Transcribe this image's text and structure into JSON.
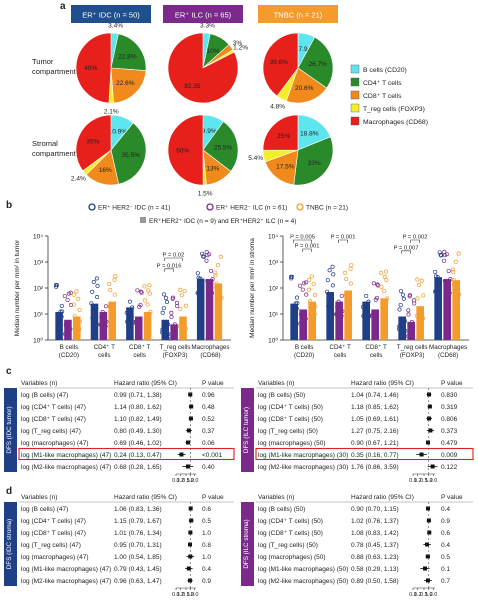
{
  "panel_labels": {
    "a": "a",
    "b": "b",
    "c": "c",
    "d": "d"
  },
  "colors": {
    "b_cells": "#5ee6ee",
    "cd4": "#2a8a2a",
    "cd8": "#f08a1c",
    "treg": "#f2ee2a",
    "macrophages": "#e8201c",
    "er_idc": "#1f3f87",
    "er_ilc": "#7b2a8c",
    "tnbc": "#f39c2b",
    "highlight": "#e0201c"
  },
  "panel_a": {
    "headers": [
      {
        "text": "ER⁺ IDC (n = 50)",
        "color": "#1f4f8c"
      },
      {
        "text": "ER⁺ ILC (n = 65)",
        "color": "#7b2a8c"
      },
      {
        "text": "TNBC (n = 21)",
        "color": "#f39c2b"
      }
    ],
    "row_labels": [
      "Tumor\ncompartment",
      "Stromal\ncompartment"
    ],
    "legend": [
      {
        "label": "B cells (CD20)",
        "color": "#5ee6ee"
      },
      {
        "label": "CD4⁺ T cells",
        "color": "#2a8a2a"
      },
      {
        "label": "CD8⁺ T cells",
        "color": "#f08a1c"
      },
      {
        "label": "T_reg cells (FOXP3)",
        "color": "#f2ee2a"
      },
      {
        "label": "Macrophages (CD68)",
        "color": "#e8201c"
      }
    ]
  },
  "chart_data": [
    {
      "type": "pie",
      "panel": "a",
      "row": "Tumor compartment",
      "column": "ER⁺ IDC",
      "labels": [
        "B cells",
        "CD4⁺ T cells",
        "CD8⁺ T cells",
        "T_reg cells",
        "Macrophages"
      ],
      "values": [
        3.4,
        22.8,
        22.6,
        2.1,
        49
      ],
      "value_labels": [
        "3.4%",
        "22.8%",
        "22.6%",
        "2.1%",
        "49%"
      ]
    },
    {
      "type": "pie",
      "panel": "a",
      "row": "Tumor compartment",
      "column": "ER⁺ ILC",
      "labels": [
        "B cells",
        "CD4⁺ T cells",
        "CD8⁺ T cells",
        "T_reg cells",
        "Macrophages"
      ],
      "values": [
        3.3,
        10,
        3,
        1.2,
        82.35
      ],
      "value_labels": [
        "3.3%",
        "10%",
        "3%",
        "1.2%",
        "82.35"
      ]
    },
    {
      "type": "pie",
      "panel": "a",
      "row": "Tumor compartment",
      "column": "TNBC",
      "labels": [
        "B cells",
        "CD4⁺ T cells",
        "CD8⁺ T cells",
        "T_reg cells",
        "Macrophages"
      ],
      "values": [
        7.9,
        26.7,
        20.6,
        4.8,
        39.6
      ],
      "value_labels": [
        "7.9",
        "26.7%",
        "20.6%",
        "4.8%",
        "39.6%"
      ]
    },
    {
      "type": "pie",
      "panel": "a",
      "row": "Stromal compartment",
      "column": "ER⁺ IDC",
      "labels": [
        "B cells",
        "CD4⁺ T cells",
        "CD8⁺ T cells",
        "T_reg cells",
        "Macrophages"
      ],
      "values": [
        10.9,
        35.5,
        16,
        2.4,
        35
      ],
      "value_labels": [
        "10.9%",
        "35.5%",
        "16%",
        "2.4%",
        "35%"
      ]
    },
    {
      "type": "pie",
      "panel": "a",
      "row": "Stromal compartment",
      "column": "ER⁺ ILC",
      "labels": [
        "B cells",
        "CD4⁺ T cells",
        "CD8⁺ T cells",
        "T_reg cells",
        "Macrophages"
      ],
      "values": [
        9.9,
        25.5,
        13,
        1.5,
        50
      ],
      "value_labels": [
        "9.9%",
        "25.5%",
        "13%",
        "1.5%",
        "50%"
      ]
    },
    {
      "type": "pie",
      "panel": "a",
      "row": "Stromal compartment",
      "column": "TNBC",
      "labels": [
        "B cells",
        "CD4⁺ T cells",
        "CD8⁺ T cells",
        "T_reg cells",
        "Macrophages"
      ],
      "values": [
        18.8,
        33,
        17.5,
        5.4,
        25
      ],
      "value_labels": [
        "18.8%",
        "33%",
        "17.5%",
        "5.4%",
        "25%"
      ]
    },
    {
      "type": "bar",
      "panel": "b",
      "title": "",
      "ylabel": "Median number per mm² in tumor",
      "y_scale": "log",
      "ylim": [
        1,
        10000
      ],
      "y_ticks": [
        "10⁰",
        "10¹",
        "10²",
        "10³",
        "10⁴"
      ],
      "categories": [
        "B cells (CD20)",
        "CD4⁺ T cells",
        "CD8⁺ T cells",
        "T_reg cells (FOXP3)",
        "Macrophages (CD68)"
      ],
      "series": [
        {
          "name": "ER⁺ HER2⁻ IDC (n = 41)",
          "values": [
            12,
            25,
            18,
            6,
            230
          ]
        },
        {
          "name": "ER⁺ HER2⁻ ILC (n = 61)",
          "values": [
            6,
            12,
            8,
            4,
            220
          ]
        },
        {
          "name": "TNBC (n = 21)",
          "values": [
            8,
            30,
            12,
            8,
            150
          ]
        }
      ],
      "annotations": [
        "P = 0.02",
        "P = 0.016"
      ]
    },
    {
      "type": "bar",
      "panel": "b",
      "title": "",
      "ylabel": "Median number per mm² in stroma",
      "y_scale": "log",
      "ylim": [
        1,
        10000
      ],
      "y_ticks": [
        "10⁰",
        "10¹",
        "10²",
        "10³",
        "10⁴"
      ],
      "categories": [
        "B cells (CD20)",
        "CD4⁺ T cells",
        "CD8⁺ T cells",
        "T_reg cells (FOXP3)",
        "Macrophages (CD68)"
      ],
      "series": [
        {
          "name": "ER⁺ HER2⁻ IDC (n = 41)",
          "values": [
            25,
            70,
            30,
            8,
            260
          ]
        },
        {
          "name": "ER⁺ HER2⁻ ILC (n = 61)",
          "values": [
            15,
            30,
            15,
            5,
            220
          ]
        },
        {
          "name": "TNBC (n = 21)",
          "values": [
            30,
            80,
            40,
            20,
            200
          ]
        }
      ],
      "annotations": [
        "P = 0.005",
        "P = 0.001",
        "P = 0.001",
        "P = 0.002",
        "P = 0.007"
      ]
    }
  ],
  "panel_b_legend": [
    {
      "label": "ER⁺ HER2⁻ IDC (n = 41)",
      "color": "#1f3f87"
    },
    {
      "label": "ER⁺ HER2⁻ ILC (n = 61)",
      "color": "#7b2a8c"
    },
    {
      "label": "TNBC (n = 21)",
      "color": "#f39c2b"
    },
    {
      "label": "ER⁺HER2⁺ IDC (n = 9) and ER⁺HER2⁺ ILC (n = 4)",
      "color": "#999999"
    }
  ],
  "forest_headers": {
    "variables": "Variables (n)",
    "hr": "Hazard ratio (95% CI)",
    "p": "P value"
  },
  "forest_ticks": [
    "0.1",
    "0.2",
    "0.5",
    "1.0",
    "2.0"
  ],
  "forests": [
    {
      "id": "c-left",
      "side_label": "DFS (IDC tumor)",
      "side_color": "#1f3f87",
      "highlight_row": 5,
      "rows": [
        {
          "var": "log (B cells) (47)",
          "hr": "0.99 (0.71, 1.38)",
          "p": "0.96",
          "est": 0.99,
          "lo": 0.71,
          "hi": 1.38
        },
        {
          "var": "log (CD4⁺ T cells) (47)",
          "hr": "1.14 (0.80, 1.62)",
          "p": "0.48",
          "est": 1.14,
          "lo": 0.8,
          "hi": 1.62
        },
        {
          "var": "log (CD8⁺ T cells) (47)",
          "hr": "1.10 (0.82, 1.49)",
          "p": "0.52",
          "est": 1.1,
          "lo": 0.82,
          "hi": 1.49
        },
        {
          "var": "log (T_reg cells) (47)",
          "hr": "0.80 (0.49, 1.30)",
          "p": "0.37",
          "est": 0.8,
          "lo": 0.49,
          "hi": 1.3
        },
        {
          "var": "log (macrophages) (47)",
          "hr": "0.69 (0.46, 1.02)",
          "p": "0.06",
          "est": 0.69,
          "lo": 0.46,
          "hi": 1.02
        },
        {
          "var": "log (M1-like macrophages) (47)",
          "hr": "0.24 (0.13, 0.47)",
          "p": "<0.001",
          "est": 0.24,
          "lo": 0.13,
          "hi": 0.47
        },
        {
          "var": "log (M2-like macrophages) (47)",
          "hr": "0.68 (0.28, 1.65)",
          "p": "0.40",
          "est": 0.68,
          "lo": 0.28,
          "hi": 1.65
        }
      ]
    },
    {
      "id": "c-right",
      "side_label": "DFS (ILC tumor)",
      "side_color": "#7b2a8c",
      "highlight_row": 5,
      "rows": [
        {
          "var": "log (B cells) (50)",
          "hr": "1.04 (0.74, 1.46)",
          "p": "0.830",
          "est": 1.04,
          "lo": 0.74,
          "hi": 1.46
        },
        {
          "var": "log (CD4⁺ T cells) (50)",
          "hr": "1.18 (0.85, 1.62)",
          "p": "0.319",
          "est": 1.18,
          "lo": 0.85,
          "hi": 1.62
        },
        {
          "var": "log (CD8⁺ T cells) (50)",
          "hr": "1.05 (0.69, 1.61)",
          "p": "0.806",
          "est": 1.05,
          "lo": 0.69,
          "hi": 1.61
        },
        {
          "var": "log (T_reg cells) (50)",
          "hr": "1.27 (0.75, 2.16)",
          "p": "0.373",
          "est": 1.27,
          "lo": 0.75,
          "hi": 2.16
        },
        {
          "var": "log (macrophages) (50)",
          "hr": "0.90 (0.67, 1.21)",
          "p": "0.479",
          "est": 0.9,
          "lo": 0.67,
          "hi": 1.21
        },
        {
          "var": "log (M1-like macrophages) (30)",
          "hr": "0.35 (0.16, 0.77)",
          "p": "0.009",
          "est": 0.35,
          "lo": 0.16,
          "hi": 0.77
        },
        {
          "var": "log (M2-like macrophages) (30)",
          "hr": "1.76 (0.86, 3.59)",
          "p": "0.122",
          "est": 1.76,
          "lo": 0.86,
          "hi": 3.59
        }
      ]
    },
    {
      "id": "d-left",
      "side_label": "DFS (IDC stroma)",
      "side_color": "#1f3f87",
      "highlight_row": -1,
      "rows": [
        {
          "var": "log (B cells) (47)",
          "hr": "1.06 (0.83, 1.36)",
          "p": "0.6",
          "est": 1.06,
          "lo": 0.83,
          "hi": 1.36
        },
        {
          "var": "log (CD4⁺ T cells) (47)",
          "hr": "1.15 (0.79, 1.67)",
          "p": "0.5",
          "est": 1.15,
          "lo": 0.79,
          "hi": 1.67
        },
        {
          "var": "log (CD8⁺ T cells) (47)",
          "hr": "1.01 (0.76, 1.34)",
          "p": "1.0",
          "est": 1.01,
          "lo": 0.76,
          "hi": 1.34
        },
        {
          "var": "log (T_reg cells) (47)",
          "hr": "0.95 (0.70, 1.31)",
          "p": "0.8",
          "est": 0.95,
          "lo": 0.7,
          "hi": 1.31
        },
        {
          "var": "log (macrophages) (47)",
          "hr": "1.00 (0.54, 1.85)",
          "p": "1.0",
          "est": 1.0,
          "lo": 0.54,
          "hi": 1.85
        },
        {
          "var": "log (M1-like macrophages) (47)",
          "hr": "0.79 (0.43, 1.45)",
          "p": "0.4",
          "est": 0.79,
          "lo": 0.43,
          "hi": 1.45
        },
        {
          "var": "log (M2-like macrophages) (47)",
          "hr": "0.96 (0.63, 1.47)",
          "p": "0.9",
          "est": 0.96,
          "lo": 0.63,
          "hi": 1.47
        }
      ]
    },
    {
      "id": "d-right",
      "side_label": "DFS (ILC stroma)",
      "side_color": "#7b2a8c",
      "highlight_row": -1,
      "rows": [
        {
          "var": "log (B cells) (50)",
          "hr": "0.90 (0.70, 1.15)",
          "p": "0.4",
          "est": 0.9,
          "lo": 0.7,
          "hi": 1.15
        },
        {
          "var": "log (CD4⁺ T cells) (50)",
          "hr": "1.02 (0.76, 1.37)",
          "p": "0.9",
          "est": 1.02,
          "lo": 0.76,
          "hi": 1.37
        },
        {
          "var": "log (CD8⁺ T cells) (50)",
          "hr": "1.08 (0.83, 1.42)",
          "p": "0.6",
          "est": 1.08,
          "lo": 0.83,
          "hi": 1.42
        },
        {
          "var": "log (T_reg cells) (50)",
          "hr": "0.78 (0.45, 1.37)",
          "p": "0.4",
          "est": 0.78,
          "lo": 0.45,
          "hi": 1.37
        },
        {
          "var": "log (macrophages) (50)",
          "hr": "0.88 (0.63, 1.23)",
          "p": "0.5",
          "est": 0.88,
          "lo": 0.63,
          "hi": 1.23
        },
        {
          "var": "log (M1-like macrophages) (50)",
          "hr": "0.58 (0.29, 1.13)",
          "p": "0.1",
          "est": 0.58,
          "lo": 0.29,
          "hi": 1.13
        },
        {
          "var": "log (M2-like macrophages) (50)",
          "hr": "0.89 (0.50, 1.58)",
          "p": "0.7",
          "est": 0.89,
          "lo": 0.5,
          "hi": 1.58
        }
      ]
    }
  ]
}
